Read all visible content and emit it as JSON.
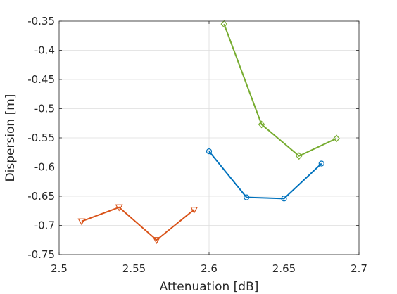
{
  "chart_data": {
    "type": "line",
    "xlabel": "Attenuation [dB]",
    "ylabel": "Dispersion [m]",
    "xlim": [
      2.5,
      2.7
    ],
    "ylim": [
      -0.75,
      -0.35
    ],
    "xticks": [
      2.5,
      2.55,
      2.6,
      2.65,
      2.7
    ],
    "xtick_labels": [
      "2.5",
      "2.55",
      "2.6",
      "2.65",
      "2.7"
    ],
    "yticks": [
      -0.35,
      -0.4,
      -0.45,
      -0.5,
      -0.55,
      -0.6,
      -0.65,
      -0.7,
      -0.75
    ],
    "ytick_labels": [
      "-0.35",
      "-0.4",
      "-0.45",
      "-0.5",
      "-0.55",
      "-0.6",
      "-0.65",
      "-0.7",
      "-0.75"
    ],
    "grid": true,
    "series": [
      {
        "color": "#0072BD",
        "marker": "circle",
        "x": [
          2.6,
          2.625,
          2.65,
          2.675
        ],
        "y": [
          -0.573,
          -0.652,
          -0.654,
          -0.594
        ]
      },
      {
        "color": "#D95319",
        "marker": "triangle-down",
        "x": [
          2.515,
          2.54,
          2.565,
          2.59
        ],
        "y": [
          -0.693,
          -0.669,
          -0.725,
          -0.673
        ]
      },
      {
        "color": "#77AC30",
        "marker": "diamond",
        "x": [
          2.61,
          2.635,
          2.66,
          2.685
        ],
        "y": [
          -0.355,
          -0.527,
          -0.581,
          -0.551
        ]
      }
    ]
  }
}
